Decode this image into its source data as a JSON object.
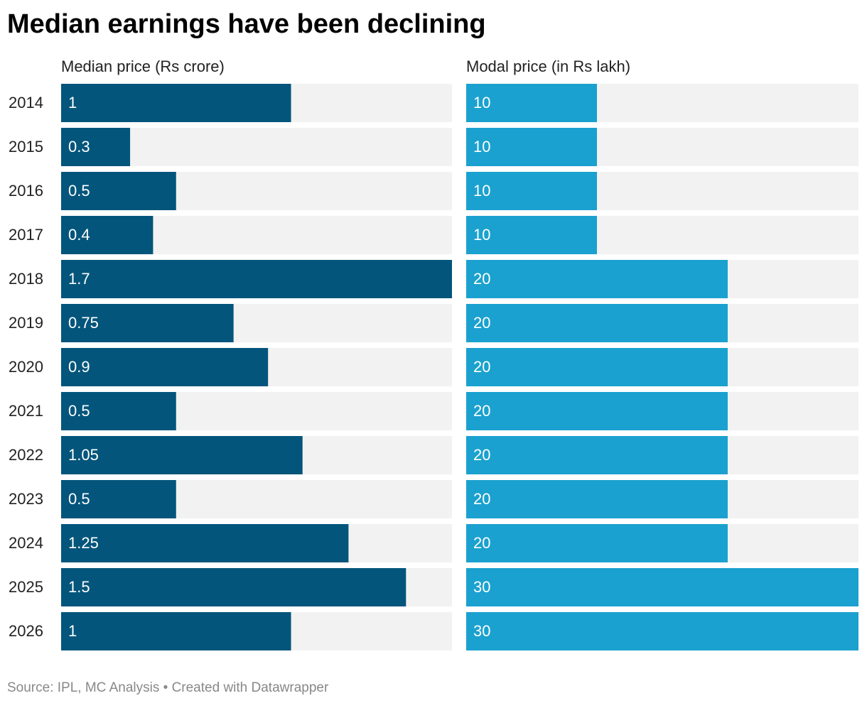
{
  "title": "Median earnings have been declining",
  "source": "Source: IPL, MC Analysis • Created with Datawrapper",
  "chart_data": [
    {
      "type": "bar",
      "title": "Median price (Rs crore)",
      "categories": [
        "2014",
        "2015",
        "2016",
        "2017",
        "2018",
        "2019",
        "2020",
        "2021",
        "2022",
        "2023",
        "2024",
        "2025",
        "2026"
      ],
      "values": [
        1,
        0.3,
        0.5,
        0.4,
        1.7,
        0.75,
        0.9,
        0.5,
        1.05,
        0.5,
        1.25,
        1.5,
        1
      ],
      "color": "#03557b",
      "xlim": [
        0,
        1.7
      ]
    },
    {
      "type": "bar",
      "title": "Modal price (in Rs lakh)",
      "values": [
        10,
        10,
        10,
        10,
        20,
        20,
        20,
        20,
        20,
        20,
        20,
        30,
        30
      ],
      "color": "#1aa1cf",
      "xlim": [
        0,
        30
      ]
    }
  ]
}
